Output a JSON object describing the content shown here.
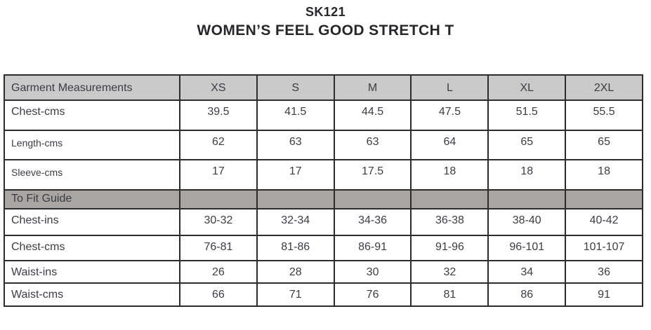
{
  "title": {
    "code": "SK121",
    "name": "WOMEN’S FEEL GOOD STRETCH T"
  },
  "table": {
    "header": {
      "label": "Garment Measurements",
      "sizes": [
        "XS",
        "S",
        "M",
        "L",
        "XL",
        "2XL"
      ]
    },
    "garment_rows": [
      {
        "label": "Chest-cms",
        "values": [
          "39.5",
          "41.5",
          "44.5",
          "47.5",
          "51.5",
          "55.5"
        ]
      },
      {
        "label": "Length-cms",
        "values": [
          "62",
          "63",
          "63",
          "64",
          "65",
          "65"
        ]
      },
      {
        "label": "Sleeve-cms",
        "values": [
          "17",
          "17",
          "17.5",
          "18",
          "18",
          "18"
        ]
      }
    ],
    "section": {
      "label": "To Fit Guide"
    },
    "fit_rows": [
      {
        "label": "Chest-ins",
        "values": [
          "30-32",
          "32-34",
          "34-36",
          "36-38",
          "38-40",
          "40-42"
        ]
      },
      {
        "label": "Chest-cms",
        "values": [
          "76-81",
          "81-86",
          "86-91",
          "91-96",
          "96-101",
          "101-107"
        ]
      },
      {
        "label": "Waist-ins",
        "values": [
          "26",
          "28",
          "30",
          "32",
          "34",
          "36"
        ]
      },
      {
        "label": "Waist-cms",
        "values": [
          "66",
          "71",
          "76",
          "81",
          "86",
          "91"
        ]
      }
    ]
  },
  "colors": {
    "header_row_bg": "#cacaca",
    "section_row_bg": "#a8a5a2",
    "border": "#2c2c2e",
    "cell_text": "#3a3d44",
    "title_text": "#26262b",
    "page_bg": "#ffffff"
  }
}
